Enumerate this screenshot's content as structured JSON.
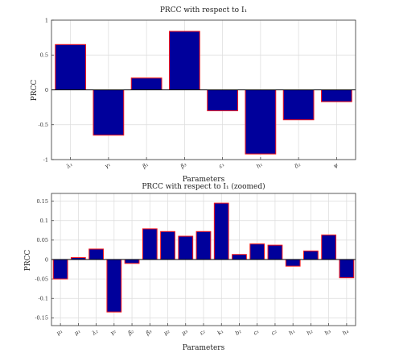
{
  "chart_data": [
    {
      "type": "bar",
      "title": "PRCC with respect to I₁",
      "xlabel": "Parameters",
      "ylabel": "PRCC",
      "ylim": [
        -1,
        1
      ],
      "yticks": [
        -1,
        -0.5,
        0,
        0.5,
        1
      ],
      "ytick_labels": [
        "-1",
        "-0.5",
        "0",
        "0.5",
        "1"
      ],
      "categories": [
        "λ₁",
        "γ₁",
        "β₁",
        "β₃",
        "ε₁",
        "h₁",
        "δ₂",
        "ψ"
      ],
      "values": [
        0.65,
        -0.65,
        0.17,
        0.84,
        -0.3,
        -0.92,
        -0.43,
        -0.17
      ],
      "grid": true,
      "bar_color": "#00009b",
      "edge_color": "#ff1a1a"
    },
    {
      "type": "bar",
      "title": "PRCC with respect to I₁ (zoomed)",
      "xlabel": "Parameters",
      "ylabel": "PRCC",
      "ylim": [
        -0.17,
        0.17
      ],
      "yticks": [
        -0.15,
        -0.1,
        -0.05,
        0,
        0.05,
        0.1,
        0.15
      ],
      "ytick_labels": [
        "-0.15",
        "-0.1",
        "-0.05",
        "0",
        "0.05",
        "0.1",
        "0.15"
      ],
      "categories": [
        "μ₁",
        "μ₁",
        "λ₂",
        "γ₂",
        "β₂",
        "β₃",
        "μ₂",
        "μ₃",
        "ε₂",
        "k₁",
        "b₂",
        "c₁",
        "c₂",
        "h₁",
        "h₂",
        "h₃",
        "h₄"
      ],
      "values": [
        -0.05,
        0.005,
        0.027,
        -0.135,
        -0.01,
        0.079,
        0.072,
        0.06,
        0.072,
        0.145,
        0.013,
        0.04,
        0.037,
        -0.017,
        0.022,
        0.063,
        -0.047
      ],
      "grid": true,
      "bar_color": "#00009b",
      "edge_color": "#ff1a1a"
    }
  ]
}
